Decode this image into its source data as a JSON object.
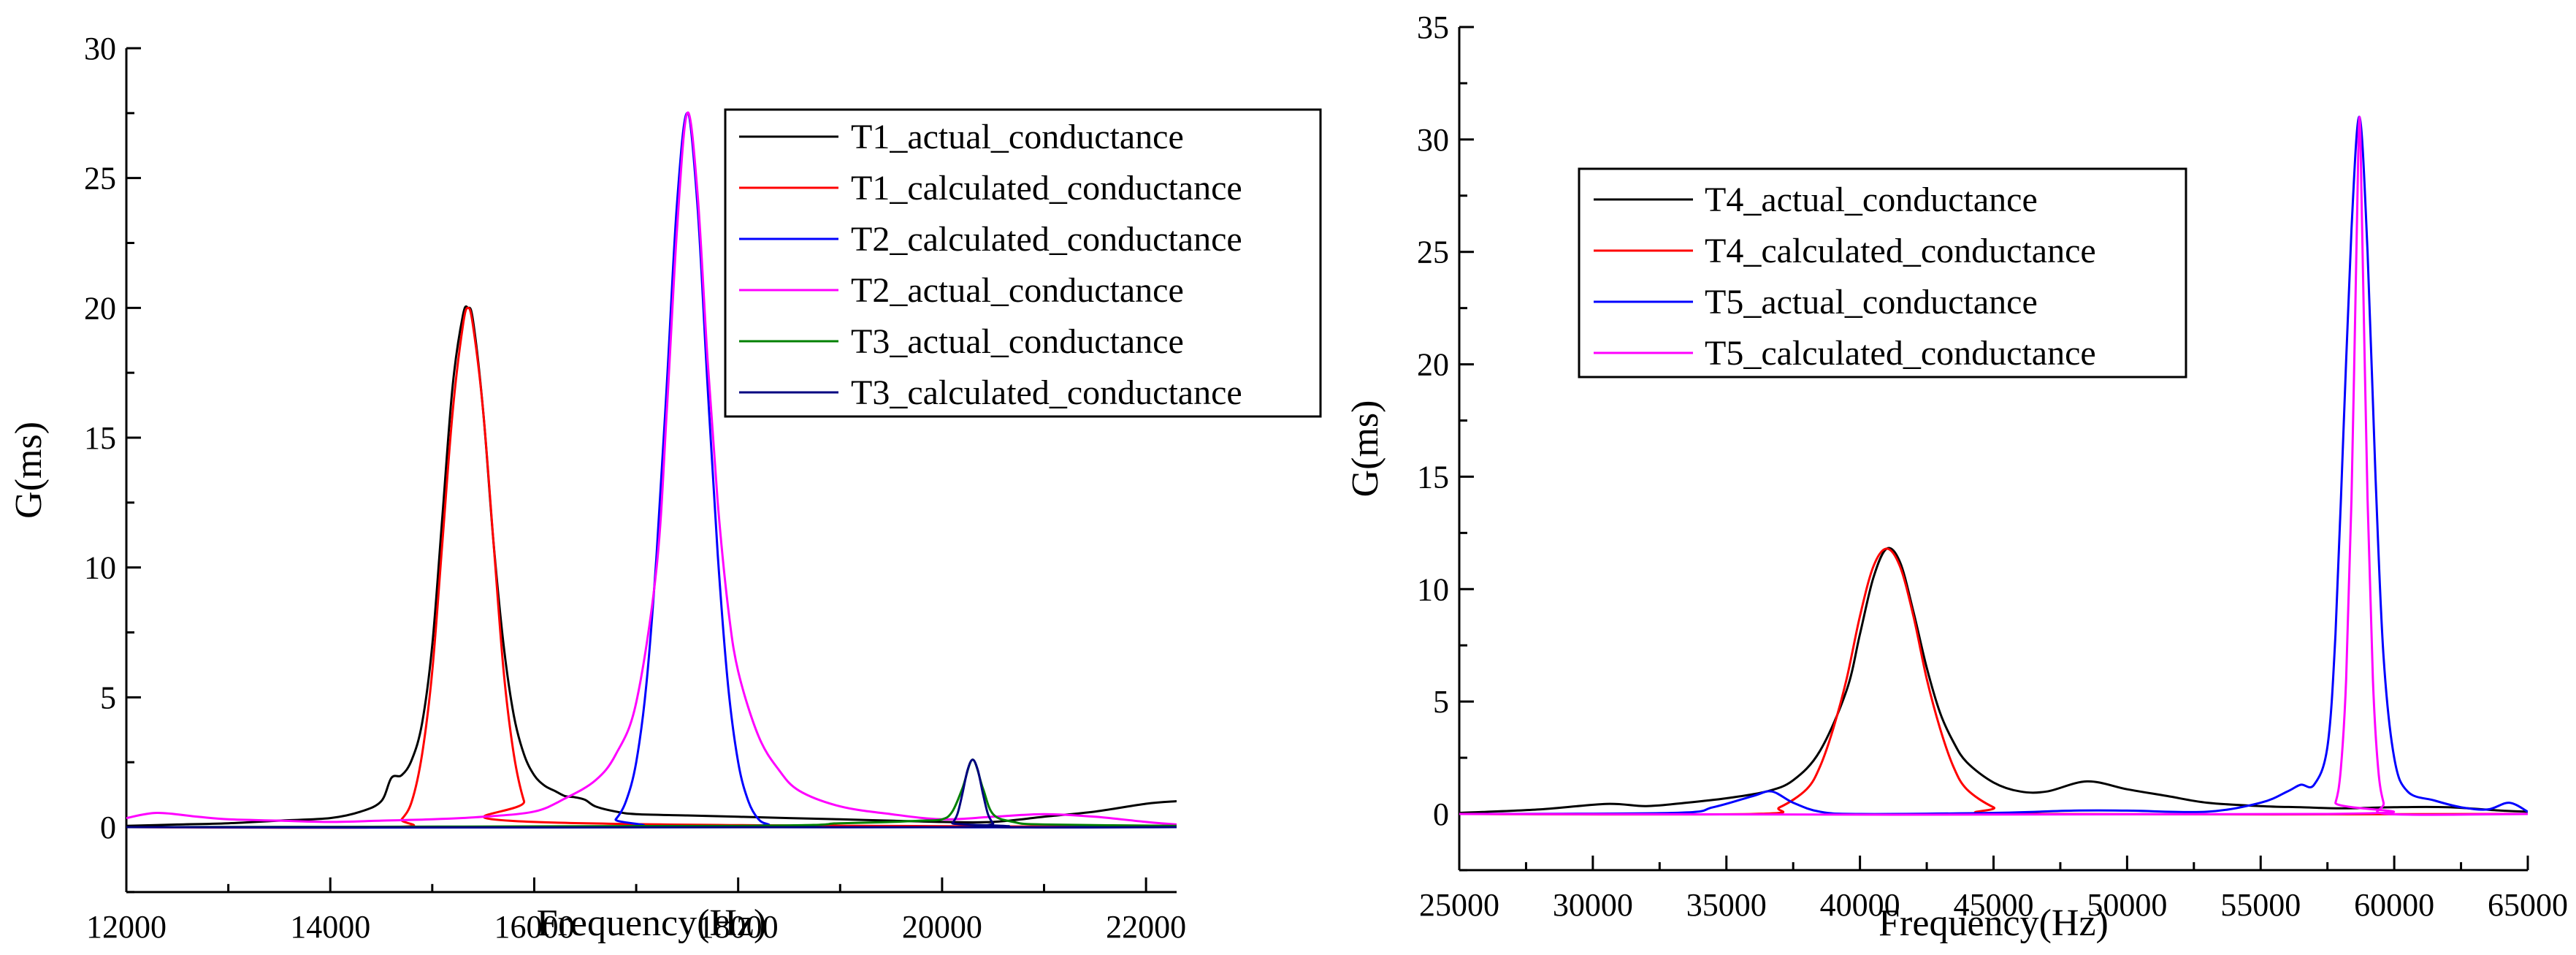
{
  "chart_data": [
    {
      "type": "line",
      "xlabel": "Frequency(Hz)",
      "ylabel": "G(ms)",
      "xlim": [
        12000,
        22300
      ],
      "ylim": [
        -2.5,
        30
      ],
      "xticks": [
        12000,
        14000,
        16000,
        18000,
        20000,
        22000
      ],
      "yticks": [
        0,
        5,
        10,
        15,
        20,
        25,
        30
      ],
      "xtick_labels": [
        "12000",
        "14000",
        "16000",
        "18000",
        "20000",
        "22000"
      ],
      "ytick_labels": [
        "0",
        "5",
        "10",
        "15",
        "20",
        "25",
        "30"
      ],
      "legend_position": "top-right",
      "series": [
        {
          "name": "T1_actual_conductance",
          "color": "#000000",
          "x": [
            12000,
            12500,
            13000,
            13500,
            14000,
            14300,
            14500,
            14600,
            14700,
            14800,
            14900,
            15000,
            15100,
            15200,
            15300,
            15350,
            15400,
            15500,
            15600,
            15700,
            15800,
            15900,
            16000,
            16100,
            16200,
            16300,
            16400,
            16500,
            16600,
            16800,
            17000,
            17500,
            18000,
            18500,
            19000,
            19500,
            20000,
            20500,
            21000,
            21500,
            22000,
            22300
          ],
          "y": [
            0.05,
            0.1,
            0.15,
            0.25,
            0.35,
            0.6,
            1.0,
            1.9,
            2.0,
            2.6,
            4.0,
            7.0,
            12.0,
            17.0,
            19.7,
            20.0,
            19.5,
            16.0,
            11.0,
            7.0,
            4.3,
            2.8,
            2.0,
            1.6,
            1.4,
            1.2,
            1.15,
            1.05,
            0.8,
            0.6,
            0.5,
            0.45,
            0.4,
            0.35,
            0.3,
            0.25,
            0.2,
            0.2,
            0.4,
            0.6,
            0.9,
            1.0
          ]
        },
        {
          "name": "T1_calculated_conductance",
          "color": "#ff0000",
          "x": [
            12000,
            14600,
            14700,
            14800,
            14900,
            15000,
            15100,
            15200,
            15300,
            15350,
            15400,
            15500,
            15600,
            15700,
            15800,
            15900,
            16000,
            22300
          ],
          "y": [
            0,
            0,
            0.3,
            1.0,
            2.8,
            6.0,
            11.0,
            16.0,
            19.3,
            20.0,
            19.3,
            16.0,
            11.0,
            6.0,
            2.8,
            1.0,
            0.2,
            0
          ]
        },
        {
          "name": "T2_calculated_conductance",
          "color": "#0000ff",
          "x": [
            12000,
            16700,
            16800,
            16900,
            17000,
            17100,
            17200,
            17300,
            17400,
            17500,
            17600,
            17700,
            17800,
            17900,
            18000,
            18100,
            18200,
            18300,
            18400,
            22300
          ],
          "y": [
            0,
            0,
            0.3,
            1.0,
            2.5,
            5.5,
            10.5,
            17.0,
            24.0,
            27.5,
            24.0,
            17.0,
            10.5,
            5.5,
            2.5,
            1.0,
            0.3,
            0.1,
            0,
            0
          ]
        },
        {
          "name": "T2_actual_conductance",
          "color": "#ff00ff",
          "x": [
            12000,
            12300,
            12700,
            13000,
            13500,
            14000,
            14500,
            15000,
            15500,
            16000,
            16300,
            16600,
            16800,
            17000,
            17200,
            17300,
            17400,
            17500,
            17600,
            17700,
            17800,
            17900,
            18000,
            18200,
            18400,
            18600,
            19000,
            19500,
            20000,
            20500,
            21000,
            21500,
            22000,
            22300
          ],
          "y": [
            0.35,
            0.55,
            0.4,
            0.3,
            0.25,
            0.2,
            0.25,
            0.3,
            0.4,
            0.6,
            1.1,
            1.8,
            2.8,
            4.8,
            10.0,
            16.0,
            23.0,
            27.5,
            24.5,
            18.0,
            12.5,
            8.5,
            6.0,
            3.5,
            2.2,
            1.4,
            0.8,
            0.5,
            0.3,
            0.4,
            0.5,
            0.4,
            0.2,
            0.1
          ]
        },
        {
          "name": "T3_actual_conductance",
          "color": "#008000",
          "x": [
            12000,
            18000,
            19000,
            19500,
            19800,
            20000,
            20100,
            20200,
            20300,
            20400,
            20500,
            20700,
            21000,
            22300
          ],
          "y": [
            0,
            0.05,
            0.15,
            0.2,
            0.25,
            0.3,
            0.6,
            1.5,
            2.6,
            1.5,
            0.5,
            0.2,
            0.1,
            0.05
          ]
        },
        {
          "name": "T3_calculated_conductance",
          "color": "#000080",
          "x": [
            12000,
            20050,
            20100,
            20150,
            20200,
            20250,
            20300,
            20350,
            20400,
            20450,
            20500,
            20550,
            22300
          ],
          "y": [
            0,
            0,
            0.15,
            0.5,
            1.3,
            2.2,
            2.6,
            2.2,
            1.3,
            0.5,
            0.15,
            0,
            0
          ]
        }
      ]
    },
    {
      "type": "line",
      "xlabel": "Frequency(Hz)",
      "ylabel": "G(ms)",
      "xlim": [
        25000,
        65000
      ],
      "ylim": [
        -2.5,
        35
      ],
      "xticks": [
        25000,
        30000,
        35000,
        40000,
        45000,
        50000,
        55000,
        60000,
        65000
      ],
      "yticks": [
        0,
        5,
        10,
        15,
        20,
        25,
        30,
        35
      ],
      "xtick_labels": [
        "25000",
        "30000",
        "35000",
        "40000",
        "45000",
        "50000",
        "55000",
        "60000",
        "65000"
      ],
      "ytick_labels": [
        "0",
        "5",
        "10",
        "15",
        "20",
        "25",
        "30",
        "35"
      ],
      "legend_position": "top-center",
      "series": [
        {
          "name": "T4_actual_conductance",
          "color": "#000000",
          "x": [
            25000,
            28000,
            30500,
            32000,
            33500,
            35000,
            36500,
            37500,
            38500,
            39500,
            40000,
            40500,
            41000,
            41500,
            42000,
            42500,
            43000,
            43500,
            44000,
            45000,
            46000,
            47000,
            48500,
            50000,
            51500,
            53000,
            55000,
            56500,
            58000,
            60000,
            62000,
            64000,
            65000
          ],
          "y": [
            0.05,
            0.2,
            0.45,
            0.35,
            0.5,
            0.7,
            1.0,
            1.5,
            2.8,
            5.5,
            8.0,
            10.5,
            11.8,
            11.2,
            9.0,
            6.5,
            4.5,
            3.2,
            2.3,
            1.4,
            1.0,
            1.0,
            1.45,
            1.1,
            0.8,
            0.5,
            0.35,
            0.3,
            0.25,
            0.3,
            0.3,
            0.15,
            0.1
          ]
        },
        {
          "name": "T4_calculated_conductance",
          "color": "#ff0000",
          "x": [
            25000,
            36000,
            37000,
            38000,
            38500,
            39000,
            39500,
            40000,
            40500,
            41000,
            41500,
            42000,
            42500,
            43000,
            43500,
            44000,
            45000,
            46000,
            65000
          ],
          "y": [
            0,
            0,
            0.3,
            1.1,
            2.1,
            3.8,
            6.0,
            8.8,
            11.0,
            11.8,
            11.0,
            8.8,
            6.0,
            3.8,
            2.1,
            1.1,
            0.3,
            0,
            0
          ]
        },
        {
          "name": "T5_actual_conductance",
          "color": "#0000ff",
          "x": [
            25000,
            33000,
            34500,
            36000,
            36700,
            37500,
            38500,
            40000,
            45000,
            48000,
            50000,
            53000,
            55000,
            56000,
            56500,
            57000,
            57500,
            57800,
            58100,
            58400,
            58700,
            59000,
            59300,
            59600,
            60000,
            60500,
            61500,
            62500,
            63500,
            64300,
            65000
          ],
          "y": [
            0,
            0.05,
            0.3,
            0.8,
            1.0,
            0.5,
            0.1,
            0,
            0.05,
            0.15,
            0.15,
            0.1,
            0.5,
            1.0,
            1.3,
            1.3,
            3.0,
            8.0,
            17.0,
            26.0,
            31.0,
            25.0,
            15.0,
            7.0,
            2.5,
            1.0,
            0.6,
            0.3,
            0.2,
            0.5,
            0.1
          ]
        },
        {
          "name": "T5_calculated_conductance",
          "color": "#ff00ff",
          "x": [
            25000,
            57500,
            57800,
            58000,
            58200,
            58400,
            58600,
            58700,
            58800,
            59000,
            59200,
            59400,
            59600,
            59800,
            65000
          ],
          "y": [
            0,
            0,
            0.5,
            2.0,
            6.0,
            14.0,
            26.0,
            31.0,
            26.0,
            14.0,
            6.0,
            2.0,
            0.5,
            0,
            0
          ]
        }
      ]
    }
  ]
}
